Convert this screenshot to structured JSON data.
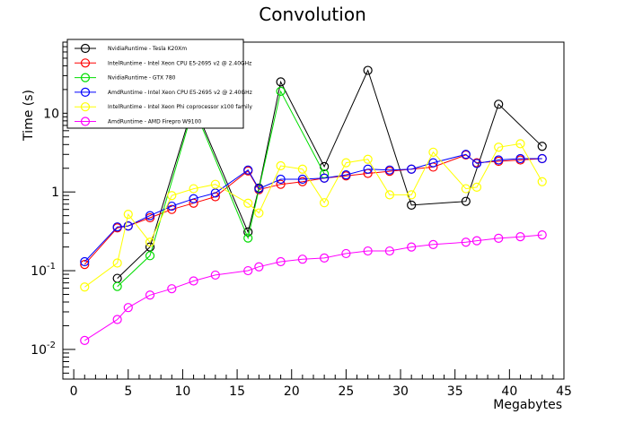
{
  "chart_data": {
    "type": "line",
    "title": "Convolution",
    "xlabel": "Megabytes",
    "ylabel": "Time (s)",
    "xlim": [
      -1,
      45
    ],
    "ylim": [
      0.0042,
      80
    ],
    "yscale": "log",
    "x_ticks": [
      "0",
      "5",
      "10",
      "15",
      "20",
      "25",
      "30",
      "35",
      "40",
      "45"
    ],
    "y_ticks": [
      {
        "base": "10",
        "exp": "-2"
      },
      {
        "base": "10",
        "exp": "-1"
      },
      {
        "base": "1",
        "exp": ""
      },
      {
        "base": "10",
        "exp": ""
      }
    ],
    "legend_position": "top-left",
    "series": [
      {
        "name": "NvidiaRuntime - Tesla K20Xm",
        "color": "#000000",
        "x": [
          4,
          7,
          11,
          16,
          17,
          19,
          23,
          27,
          31,
          36,
          39,
          43
        ],
        "y": [
          0.08,
          0.2,
          13.0,
          0.31,
          1.12,
          25.0,
          2.1,
          35.0,
          0.68,
          0.76,
          13.0,
          3.8
        ]
      },
      {
        "name": "IntelRuntime - Intel Xeon CPU E5-2695 v2 @ 2.40GHz",
        "color": "#ff0000",
        "x": [
          1,
          4,
          5,
          7,
          9,
          11,
          13,
          16,
          17,
          19,
          21,
          23,
          25,
          27,
          29,
          31,
          33,
          36,
          37,
          39,
          41,
          43
        ],
        "y": [
          0.12,
          0.35,
          0.37,
          0.47,
          0.6,
          0.72,
          0.87,
          1.85,
          1.07,
          1.25,
          1.35,
          1.5,
          1.6,
          1.72,
          1.83,
          1.95,
          2.07,
          2.95,
          2.35,
          2.45,
          2.55,
          2.65
        ]
      },
      {
        "name": "NvidiaRuntime - GTX 780",
        "color": "#00dd00",
        "x": [
          4,
          7,
          11,
          16,
          19,
          23
        ],
        "y": [
          0.063,
          0.155,
          12.0,
          0.26,
          19.0,
          1.7
        ]
      },
      {
        "name": "AmdRuntime - Intel Xeon CPU E5-2695 v2 @ 2.40GHz",
        "color": "#0000ff",
        "x": [
          1,
          4,
          5,
          7,
          9,
          11,
          13,
          16,
          17,
          19,
          21,
          23,
          25,
          27,
          29,
          31,
          33,
          36,
          37,
          39,
          41,
          43
        ],
        "y": [
          0.13,
          0.36,
          0.37,
          0.5,
          0.66,
          0.82,
          0.97,
          1.9,
          1.1,
          1.45,
          1.45,
          1.5,
          1.65,
          1.95,
          1.9,
          1.95,
          2.35,
          3.0,
          2.3,
          2.55,
          2.65,
          2.65
        ]
      },
      {
        "name": "IntelRuntime - Intel Xeon Phi coprocessor x100 family",
        "color": "#ffff00",
        "x": [
          1,
          4,
          5,
          7,
          9,
          11,
          13,
          16,
          17,
          19,
          21,
          23,
          25,
          27,
          29,
          31,
          33,
          36,
          37,
          39,
          41,
          43
        ],
        "y": [
          0.062,
          0.125,
          0.52,
          0.23,
          0.9,
          1.1,
          1.25,
          0.72,
          0.54,
          2.15,
          1.95,
          0.73,
          2.35,
          2.6,
          0.92,
          0.92,
          3.2,
          1.1,
          1.15,
          3.7,
          4.1,
          1.35
        ]
      },
      {
        "name": "AmdRuntime - AMD Firepro W9100",
        "color": "#ff00ff",
        "x": [
          1,
          4,
          5,
          7,
          9,
          11,
          13,
          16,
          17,
          19,
          21,
          23,
          25,
          27,
          29,
          31,
          33,
          36,
          37,
          39,
          41,
          43
        ],
        "y": [
          0.013,
          0.024,
          0.034,
          0.049,
          0.059,
          0.074,
          0.088,
          0.1,
          0.112,
          0.13,
          0.14,
          0.145,
          0.165,
          0.178,
          0.178,
          0.2,
          0.215,
          0.23,
          0.24,
          0.258,
          0.27,
          0.285
        ]
      }
    ]
  }
}
